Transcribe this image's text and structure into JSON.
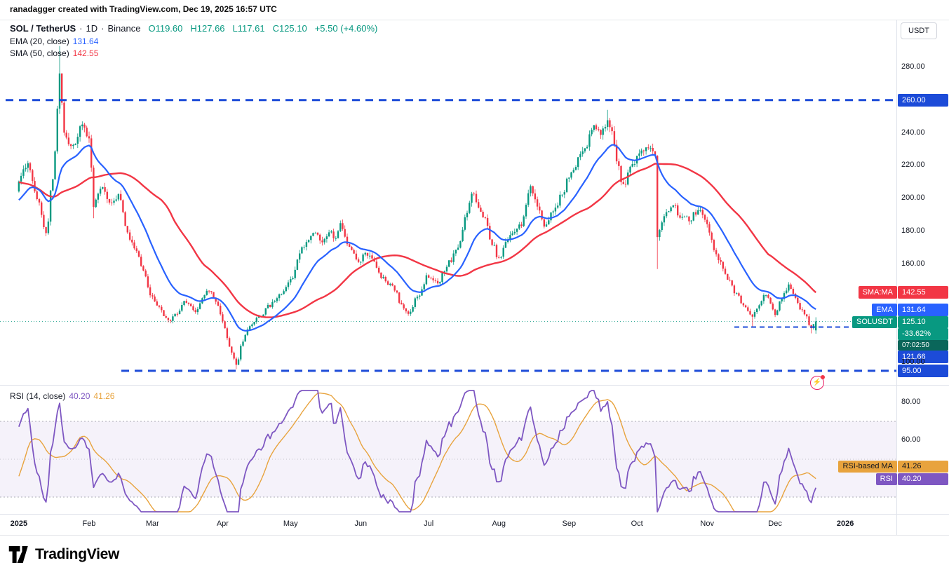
{
  "attribution": "ranadagger created with TradingView.com, Dec 19, 2025 16:57 UTC",
  "axis_button": {
    "label": "USDT"
  },
  "footer": {
    "brand": "TradingView"
  },
  "legend": {
    "symbol": "SOL / TetherUS",
    "sep": "·",
    "interval": "1D",
    "exchange": "Binance",
    "ohlc": {
      "o_label": "O",
      "o": "119.60",
      "h_label": "H",
      "h": "127.66",
      "l_label": "L",
      "l": "117.61",
      "c_label": "C",
      "c": "125.10",
      "change": "+5.50 (+4.60%)"
    },
    "ema": {
      "name": "EMA (20, close)",
      "value": "131.64"
    },
    "sma": {
      "name": "SMA (50, close)",
      "value": "142.55"
    }
  },
  "rsi_legend": {
    "name": "RSI (14, close)",
    "rsi": "40.20",
    "ma": "41.26"
  },
  "badges": {
    "level_260": {
      "value": "260.00"
    },
    "sma": {
      "name": "SMA:MA",
      "value": "142.55"
    },
    "ema": {
      "name": "EMA",
      "value": "131.64"
    },
    "symbol": {
      "name": "SOLUSDT",
      "value": "125.10",
      "pct": "-33.62%",
      "countdown": "07:02:50"
    },
    "level_121": {
      "value": "121.66"
    },
    "level_95": {
      "value": "95.00"
    },
    "rsi_ma": {
      "name": "RSI-based MA",
      "value": "41.26"
    },
    "rsi": {
      "name": "RSI",
      "value": "40.20"
    }
  },
  "price_axis": {
    "ticks": [
      {
        "t": "280.00",
        "p": 280
      },
      {
        "t": "240.00",
        "p": 240
      },
      {
        "t": "220.00",
        "p": 220
      },
      {
        "t": "200.00",
        "p": 200
      },
      {
        "t": "180.00",
        "p": 180
      },
      {
        "t": "160.00",
        "p": 160
      },
      {
        "t": "100.00",
        "p": 100
      }
    ]
  },
  "rsi_axis": {
    "ticks": [
      {
        "t": "80.00",
        "v": 80
      },
      {
        "t": "60.00",
        "v": 60
      }
    ]
  },
  "time_axis": {
    "labels": [
      {
        "t": "2025",
        "d": 0,
        "major": true
      },
      {
        "t": "Feb",
        "d": 31
      },
      {
        "t": "Mar",
        "d": 59
      },
      {
        "t": "Apr",
        "d": 90
      },
      {
        "t": "May",
        "d": 120
      },
      {
        "t": "Jun",
        "d": 151
      },
      {
        "t": "Jul",
        "d": 181
      },
      {
        "t": "Aug",
        "d": 212
      },
      {
        "t": "Sep",
        "d": 243
      },
      {
        "t": "Oct",
        "d": 273
      },
      {
        "t": "Nov",
        "d": 304
      },
      {
        "t": "Dec",
        "d": 334
      },
      {
        "t": "2026",
        "d": 365,
        "major": true
      }
    ]
  },
  "colors": {
    "up": "#089981",
    "down": "#F23645",
    "ema": "#2962FF",
    "sma": "#F23645",
    "level": "#1C4BD8",
    "rsi": "#7E57C2",
    "rsi_ma": "#E8A33D",
    "band": "#7E57C2",
    "countdown": "#0A665A"
  },
  "chart_data": {
    "type": "candlestick",
    "symbol": "SOLUSDT",
    "exchange": "Binance",
    "interval": "1D",
    "title": "SOL / TetherUS · 1D · Binance",
    "price_axis_range_shown": [
      86,
      308
    ],
    "last_candle": {
      "o": 119.6,
      "h": 127.66,
      "l": 117.61,
      "c": 125.1,
      "change": 5.5,
      "change_pct": 4.6
    },
    "levels": {
      "resistance": 260.0,
      "support": 95.0,
      "ray": 121.66,
      "last_price": 125.1
    },
    "overlays": [
      {
        "name": "EMA",
        "length": 20,
        "source": "close",
        "value": 131.64
      },
      {
        "name": "SMA",
        "length": 50,
        "source": "close",
        "value": 142.55
      }
    ],
    "rsi": {
      "length": 14,
      "source": "close",
      "value": 40.2,
      "ma_value": 41.26,
      "bands": [
        70,
        30
      ]
    },
    "warmup": [
      [
        -50,
        230
      ],
      [
        -42,
        240
      ],
      [
        -34,
        222
      ],
      [
        -26,
        205
      ],
      [
        -18,
        192
      ],
      [
        -10,
        186
      ],
      [
        -5,
        198
      ],
      [
        -1,
        205
      ]
    ],
    "anchors": [
      [
        0,
        210
      ],
      [
        4,
        222
      ],
      [
        8,
        200
      ],
      [
        12,
        178
      ],
      [
        15,
        212
      ],
      [
        16,
        230
      ],
      [
        18,
        275
      ],
      [
        20,
        238
      ],
      [
        24,
        232
      ],
      [
        28,
        246
      ],
      [
        31,
        238
      ],
      [
        33,
        196
      ],
      [
        36,
        208
      ],
      [
        40,
        198
      ],
      [
        44,
        202
      ],
      [
        48,
        178
      ],
      [
        52,
        168
      ],
      [
        55,
        155
      ],
      [
        58,
        142
      ],
      [
        62,
        133
      ],
      [
        66,
        125
      ],
      [
        70,
        129
      ],
      [
        73,
        137
      ],
      [
        78,
        131
      ],
      [
        82,
        142
      ],
      [
        84,
        145
      ],
      [
        87,
        138
      ],
      [
        90,
        126
      ],
      [
        93,
        110
      ],
      [
        96,
        99
      ],
      [
        99,
        113
      ],
      [
        101,
        121
      ],
      [
        106,
        128
      ],
      [
        111,
        135
      ],
      [
        116,
        141
      ],
      [
        120,
        151
      ],
      [
        125,
        169
      ],
      [
        131,
        181
      ],
      [
        134,
        172
      ],
      [
        137,
        179
      ],
      [
        140,
        176
      ],
      [
        142,
        184
      ],
      [
        146,
        171
      ],
      [
        150,
        161
      ],
      [
        153,
        167
      ],
      [
        156,
        163
      ],
      [
        160,
        153
      ],
      [
        162,
        149
      ],
      [
        166,
        145
      ],
      [
        169,
        135
      ],
      [
        172,
        129
      ],
      [
        176,
        141
      ],
      [
        181,
        153
      ],
      [
        185,
        149
      ],
      [
        188,
        155
      ],
      [
        190,
        161
      ],
      [
        194,
        169
      ],
      [
        197,
        187
      ],
      [
        201,
        204
      ],
      [
        203,
        193
      ],
      [
        206,
        187
      ],
      [
        209,
        173
      ],
      [
        212,
        163
      ],
      [
        215,
        173
      ],
      [
        218,
        179
      ],
      [
        222,
        185
      ],
      [
        226,
        208
      ],
      [
        229,
        196
      ],
      [
        232,
        183
      ],
      [
        236,
        191
      ],
      [
        240,
        203
      ],
      [
        243,
        213
      ],
      [
        247,
        223
      ],
      [
        250,
        232
      ],
      [
        254,
        243
      ],
      [
        257,
        239
      ],
      [
        260,
        248
      ],
      [
        262,
        239
      ],
      [
        264,
        224
      ],
      [
        267,
        207
      ],
      [
        270,
        219
      ],
      [
        273,
        225
      ],
      [
        276,
        231
      ],
      [
        281,
        228
      ],
      [
        282,
        178
      ],
      [
        285,
        190
      ],
      [
        289,
        197
      ],
      [
        292,
        189
      ],
      [
        296,
        187
      ],
      [
        300,
        193
      ],
      [
        304,
        185
      ],
      [
        307,
        169
      ],
      [
        310,
        161
      ],
      [
        313,
        151
      ],
      [
        317,
        141
      ],
      [
        320,
        135
      ],
      [
        324,
        128
      ],
      [
        327,
        135
      ],
      [
        330,
        142
      ],
      [
        332,
        135
      ],
      [
        334,
        129
      ],
      [
        337,
        139
      ],
      [
        340,
        147
      ],
      [
        343,
        139
      ],
      [
        345,
        133
      ],
      [
        348,
        127
      ],
      [
        350,
        121
      ],
      [
        352,
        125.1
      ]
    ],
    "wick_overrides": [
      [
        18,
        "h",
        293
      ],
      [
        33,
        "l",
        188
      ],
      [
        96,
        "l",
        96
      ],
      [
        260,
        "h",
        254
      ],
      [
        282,
        "l",
        157
      ],
      [
        324,
        "l",
        122
      ],
      [
        350,
        "l",
        117.8
      ]
    ]
  }
}
